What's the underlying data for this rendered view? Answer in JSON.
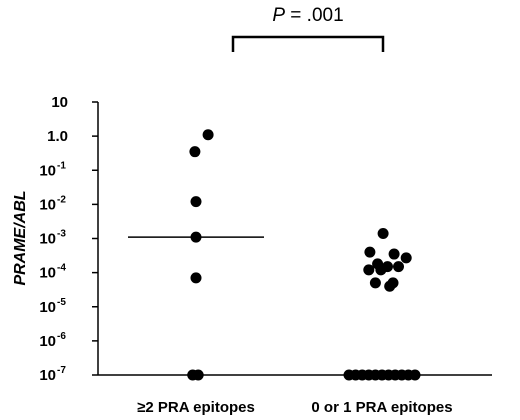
{
  "chart_data": {
    "type": "scatter",
    "ylabel": "PRAME/ABL",
    "yscale": "log",
    "ylim": [
      1e-07,
      10
    ],
    "y_ticks": [
      {
        "value": 10,
        "base": "10",
        "exp": ""
      },
      {
        "value": 1,
        "base": "1.0",
        "exp": ""
      },
      {
        "value": 0.1,
        "base": "10",
        "exp": "-1"
      },
      {
        "value": 0.01,
        "base": "10",
        "exp": "-2"
      },
      {
        "value": 0.001,
        "base": "10",
        "exp": "-3"
      },
      {
        "value": 0.0001,
        "base": "10",
        "exp": "-4"
      },
      {
        "value": 1e-05,
        "base": "10",
        "exp": "-5"
      },
      {
        "value": 1e-06,
        "base": "10",
        "exp": "-6"
      },
      {
        "value": 1e-07,
        "base": "10",
        "exp": "-7"
      }
    ],
    "categories": [
      "≥2 PRA epitopes",
      "0 or 1 PRA epitopes"
    ],
    "groups": [
      {
        "category": "≥2 PRA epitopes",
        "median": 0.0011,
        "points": [
          {
            "offset": 0.55,
            "y": 1.1
          },
          {
            "offset": -0.05,
            "y": 0.35
          },
          {
            "offset": 0,
            "y": 0.012
          },
          {
            "offset": 0,
            "y": 0.0011
          },
          {
            "offset": 0,
            "y": 7e-05
          },
          {
            "offset": -0.15,
            "y": 1e-07
          },
          {
            "offset": 0.1,
            "y": 1e-07
          }
        ]
      },
      {
        "category": "0 or 1 PRA epitopes",
        "points": [
          {
            "offset": 0.05,
            "y": 0.0014
          },
          {
            "offset": -0.55,
            "y": 0.0004
          },
          {
            "offset": 0.55,
            "y": 0.00035
          },
          {
            "offset": 1.1,
            "y": 0.00027
          },
          {
            "offset": -0.2,
            "y": 0.00018
          },
          {
            "offset": 0.25,
            "y": 0.00015
          },
          {
            "offset": 0.75,
            "y": 0.00015
          },
          {
            "offset": -0.6,
            "y": 0.00012
          },
          {
            "offset": -0.05,
            "y": 0.00012
          },
          {
            "offset": -0.3,
            "y": 5e-05
          },
          {
            "offset": 0.5,
            "y": 5e-05
          },
          {
            "offset": 0.35,
            "y": 4e-05
          },
          {
            "offset": -1.5,
            "y": 1e-07
          },
          {
            "offset": -1.2,
            "y": 1e-07
          },
          {
            "offset": -0.9,
            "y": 1e-07
          },
          {
            "offset": -0.6,
            "y": 1e-07
          },
          {
            "offset": -0.3,
            "y": 1e-07
          },
          {
            "offset": 0,
            "y": 1e-07
          },
          {
            "offset": 0.3,
            "y": 1e-07
          },
          {
            "offset": 0.6,
            "y": 1e-07
          },
          {
            "offset": 0.9,
            "y": 1e-07
          },
          {
            "offset": 1.2,
            "y": 1e-07
          },
          {
            "offset": 1.5,
            "y": 1e-07
          }
        ]
      }
    ],
    "annotation": {
      "text_italic": "P",
      "text_rest": " = .001"
    },
    "grid": false,
    "legend": "none"
  }
}
